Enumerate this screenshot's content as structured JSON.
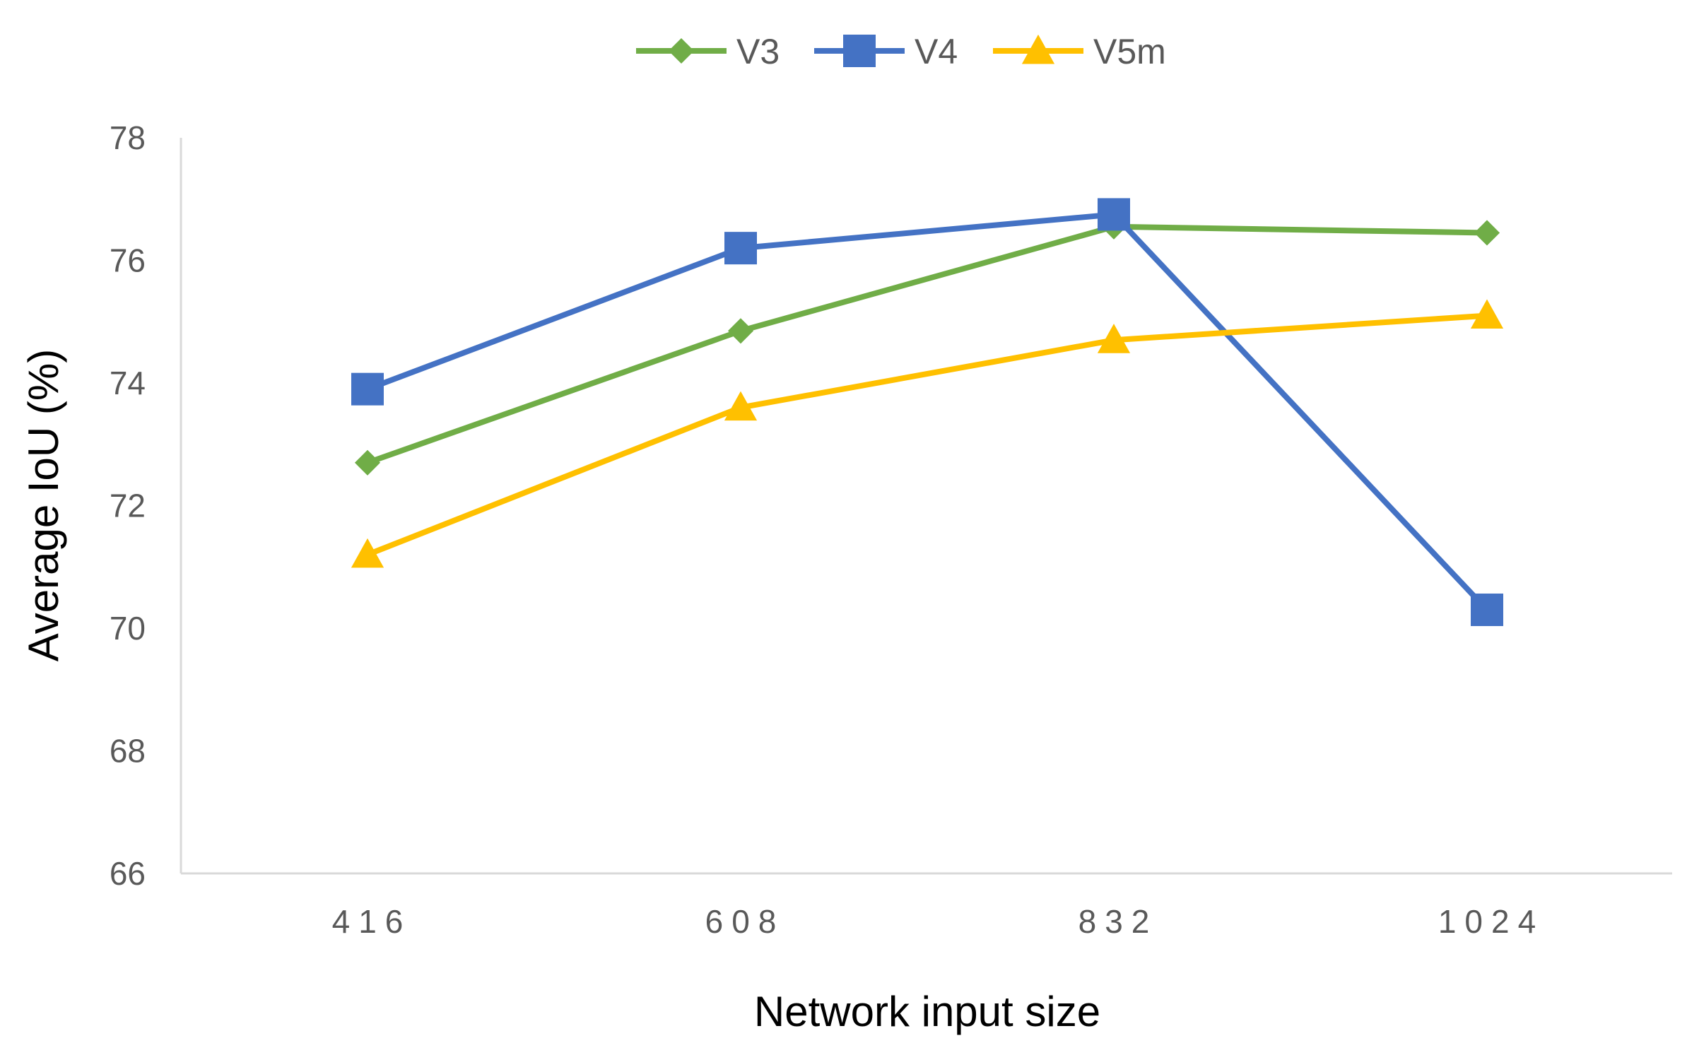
{
  "chart_data": {
    "type": "line",
    "title": "",
    "xlabel": "Network input size",
    "ylabel": "Average IoU (%)",
    "categories": [
      "416",
      "608",
      "832",
      "1024"
    ],
    "ylim": [
      66,
      78
    ],
    "yticks": [
      "66",
      "68",
      "70",
      "72",
      "74",
      "76",
      "78"
    ],
    "grid": false,
    "legend_position": "top",
    "series": [
      {
        "name": "V3",
        "color": "#70AD47",
        "marker": "diamond",
        "values": [
          72.7,
          74.85,
          76.55,
          76.45
        ]
      },
      {
        "name": "V4",
        "color": "#4472C4",
        "marker": "square",
        "values": [
          73.9,
          76.2,
          76.75,
          70.3
        ]
      },
      {
        "name": "V5m",
        "color": "#FFC000",
        "marker": "triangle",
        "values": [
          71.2,
          73.6,
          74.7,
          75.1
        ]
      }
    ]
  }
}
